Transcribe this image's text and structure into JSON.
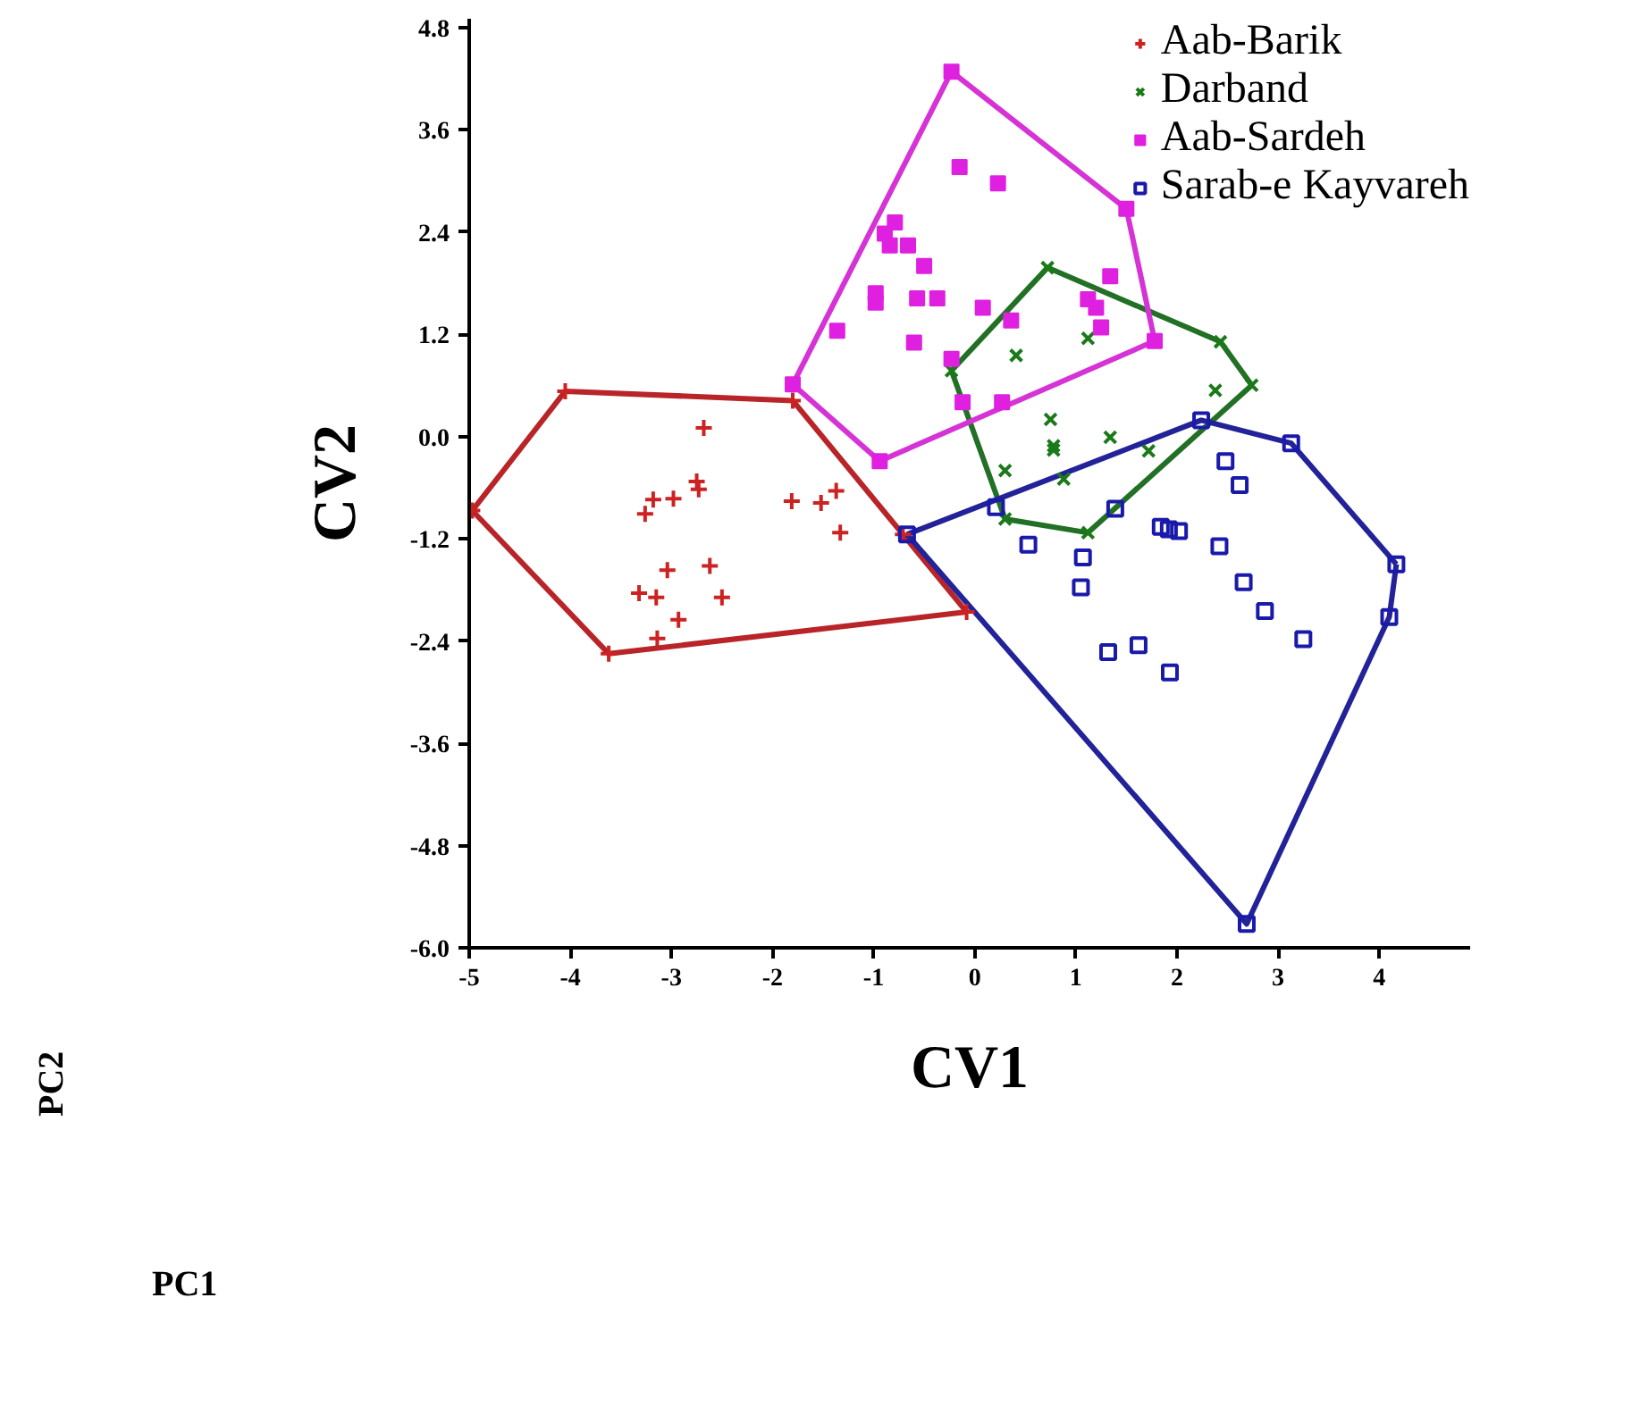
{
  "chart_data": {
    "type": "scatter",
    "xlabel": "CV1",
    "ylabel": "CV2",
    "xlim": [
      -5,
      4.9
    ],
    "ylim": [
      -6.0,
      4.9
    ],
    "xticks": [
      -5,
      -4,
      -3,
      -2,
      -1,
      0,
      1,
      2,
      3,
      4
    ],
    "yticks": [
      4.8,
      3.6,
      2.4,
      1.2,
      {
        "value": 0,
        "label": "0.0"
      },
      -1.2,
      -2.4,
      -3.6,
      -4.8,
      {
        "value": -6,
        "label": "-6.0"
      }
    ],
    "grid": false,
    "legend": "top right",
    "annotations": [
      "PC2",
      "PC1"
    ],
    "series": [
      {
        "name": "Aab-Barik",
        "color": "#cc2222",
        "marker": "cross",
        "x": [
          -2.68,
          -2.75,
          -2.73,
          -2.98,
          -3.18,
          -3.26,
          -1.81,
          -1.52,
          -1.37,
          -1.33,
          -3.04,
          -2.62,
          -3.32,
          -3.15,
          -2.5,
          -2.93,
          -3.14,
          -4.97,
          -4.05,
          -1.8,
          -0.71,
          -0.08,
          -3.62
        ],
        "values": [
          0.1,
          -0.53,
          -0.62,
          -0.73,
          -0.74,
          -0.91,
          -0.76,
          -0.78,
          -0.64,
          -1.13,
          -1.57,
          -1.52,
          -1.84,
          -1.89,
          -1.89,
          -2.15,
          -2.37,
          -0.87,
          0.53,
          0.42,
          -1.15,
          -2.06,
          -2.55
        ]
      },
      {
        "name": "Darband",
        "color": "#1a7a1a",
        "marker": "x",
        "x": [
          -0.23,
          0.72,
          0.41,
          1.12,
          0.75,
          0.78,
          0.78,
          1.34,
          0.3,
          0.88,
          1.72,
          0.3,
          1.12,
          2.43,
          2.74,
          2.38
        ],
        "values": [
          0.77,
          1.98,
          0.95,
          1.15,
          0.2,
          -0.11,
          -0.16,
          -0.01,
          -0.4,
          -0.5,
          -0.17,
          -0.97,
          -1.13,
          1.11,
          0.6,
          0.54
        ]
      },
      {
        "name": "Aab-Sardeh",
        "color": "#e020e0",
        "marker": "square",
        "x": [
          -0.15,
          0.23,
          -0.79,
          -0.89,
          -0.84,
          -0.66,
          -0.5,
          -0.98,
          -0.98,
          -0.57,
          -0.37,
          0.08,
          0.36,
          -1.36,
          -0.6,
          -0.23,
          1.34,
          1.12,
          1.2,
          1.25,
          -0.12,
          0.27,
          -0.23,
          1.5,
          1.78,
          -0.94,
          -1.8
        ],
        "values": [
          3.16,
          2.97,
          2.51,
          2.38,
          2.24,
          2.24,
          2.0,
          1.68,
          1.57,
          1.62,
          1.62,
          1.51,
          1.36,
          1.24,
          1.1,
          0.91,
          1.88,
          1.61,
          1.51,
          1.28,
          0.4,
          0.4,
          4.28,
          2.67,
          1.12,
          -0.29,
          0.61
        ]
      },
      {
        "name": "Sarab-e Kayvareh",
        "color": "#1a1aaa",
        "marker": "square_open",
        "x": [
          -0.67,
          2.24,
          3.13,
          4.17,
          4.1,
          2.69,
          0.21,
          0.53,
          1.07,
          1.05,
          1.39,
          1.84,
          2.02,
          1.92,
          2.48,
          2.62,
          2.42,
          2.66,
          2.87,
          3.25,
          1.32,
          1.62,
          1.93
        ],
        "values": [
          -1.15,
          0.19,
          -0.08,
          -1.5,
          -2.12,
          -5.72,
          -0.83,
          -1.27,
          -1.42,
          -1.77,
          -0.85,
          -1.06,
          -1.11,
          -1.09,
          -0.29,
          -0.57,
          -1.29,
          -1.71,
          -2.05,
          -2.38,
          -2.53,
          -2.45,
          -2.77
        ]
      },
      {
        "type": "line",
        "color": "#b82428",
        "x": [
          -4.97,
          -4.05,
          -1.8,
          -0.71,
          -0.08
        ],
        "values": [
          -0.87,
          0.53,
          0.42,
          -1.15,
          -2.06
        ]
      },
      {
        "type": "line",
        "color": "#b82428",
        "x": [
          -4.97,
          -3.62,
          -0.08
        ],
        "values": [
          -0.87,
          -2.55,
          -2.06
        ]
      },
      {
        "type": "line",
        "color": "#227026",
        "x": [
          -0.23,
          0.72,
          2.43,
          2.74
        ],
        "values": [
          0.77,
          1.98,
          1.11,
          0.6
        ]
      },
      {
        "type": "line",
        "color": "#227026",
        "x": [
          -0.23,
          0.3,
          1.12,
          2.74
        ],
        "values": [
          0.77,
          -0.97,
          -1.13,
          0.6
        ]
      },
      {
        "type": "line",
        "color": "#d633d6",
        "x": [
          -1.8,
          -0.23,
          1.5,
          1.78
        ],
        "values": [
          0.61,
          4.28,
          2.67,
          1.12
        ]
      },
      {
        "type": "line",
        "color": "#d633d6",
        "x": [
          -1.8,
          -0.94,
          1.78
        ],
        "values": [
          0.61,
          -0.29,
          1.12
        ]
      },
      {
        "type": "line",
        "color": "#222299",
        "x": [
          -0.67,
          2.24,
          3.13,
          4.17
        ],
        "values": [
          -1.15,
          0.19,
          -0.08,
          -1.5
        ]
      },
      {
        "type": "line",
        "color": "#222299",
        "x": [
          -0.67,
          2.69,
          4.1,
          4.17
        ],
        "values": [
          -1.15,
          -5.72,
          -2.12,
          -1.5
        ]
      }
    ]
  }
}
